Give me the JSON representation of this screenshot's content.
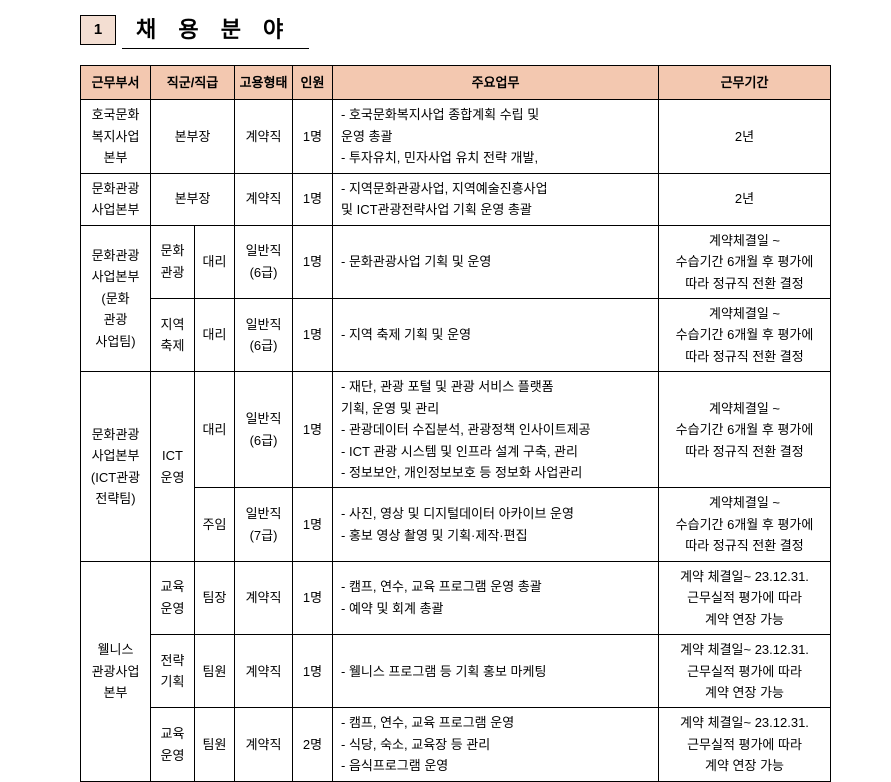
{
  "section": {
    "num": "1",
    "title": "채 용 분 야"
  },
  "headers": {
    "dept": "근무부서",
    "group": "직군/직급",
    "type": "고용형태",
    "pers": "인원",
    "duties": "주요업무",
    "period": "근무기간"
  },
  "rows": [
    {
      "dept": "호국문화\n복지사업\n본부",
      "group_span2": "본부장",
      "type": "계약직",
      "pers": "1명",
      "duties": "- 호국문화복지사업 종합계획 수립 및\n  운영 총괄\n- 투자유치, 민자사업 유치 전략 개발,",
      "period": "2년"
    },
    {
      "dept": "문화관광\n사업본부",
      "group_span2": "본부장",
      "type": "계약직",
      "pers": "1명",
      "duties": "- 지역문화관광사업, 지역예술진흥사업\n  및 ICT관광전략사업 기획 운영 총괄",
      "period": "2년"
    },
    {
      "dept": "문화관광\n사업본부\n(문화\n관광\n사업팀)",
      "sub": [
        {
          "g1": "문화\n관광",
          "g2": "대리",
          "type": "일반직\n(6급)",
          "pers": "1명",
          "duties": "- 문화관광사업 기획 및 운영",
          "period": "계약체결일 ~\n수습기간 6개월 후 평가에\n따라 정규직 전환 결정"
        },
        {
          "g1": "지역\n축제",
          "g2": "대리",
          "type": "일반직\n(6급)",
          "pers": "1명",
          "duties": "- 지역 축제 기획 및 운영",
          "period": "계약체결일 ~\n수습기간 6개월 후 평가에\n따라 정규직 전환 결정"
        }
      ]
    },
    {
      "dept": "문화관광\n사업본부\n(ICT관광\n전략팀)",
      "g1": "ICT\n운영",
      "sub": [
        {
          "g2": "대리",
          "type": "일반직\n(6급)",
          "pers": "1명",
          "duties": "- 재단, 관광 포털 및 관광 서비스 플랫폼\n  기획, 운영 및 관리\n- 관광데이터 수집분석, 관광정책 인사이트제공\n- ICT 관광 시스템 및 인프라 설계 구축, 관리\n- 정보보안, 개인정보보호 등 정보화 사업관리",
          "period": "계약체결일 ~\n수습기간 6개월 후 평가에\n따라 정규직 전환 결정"
        },
        {
          "g2": "주임",
          "type": "일반직\n(7급)",
          "pers": "1명",
          "duties": "- 사진, 영상 및 디지털데이터 아카이브 운영\n- 홍보 영상 촬영 및 기획·제작·편집",
          "period": "계약체결일 ~\n수습기간 6개월 후 평가에\n따라 정규직 전환 결정"
        }
      ]
    },
    {
      "dept": "웰니스\n관광사업\n본부",
      "sub": [
        {
          "g1": "교육\n운영",
          "g2": "팀장",
          "type": "계약직",
          "pers": "1명",
          "duties": "- 캠프, 연수, 교육 프로그램 운영 총괄\n- 예약 및 회계 총괄",
          "period": "계약 체결일~ 23.12.31.\n근무실적 평가에 따라\n계약 연장 가능"
        },
        {
          "g1": "전략\n기획",
          "g2": "팀원",
          "type": "계약직",
          "pers": "1명",
          "duties": "- 웰니스 프로그램 등 기획 홍보 마케팅",
          "period": "계약 체결일~ 23.12.31.\n근무실적 평가에 따라\n계약 연장 가능"
        },
        {
          "g1": "교육\n운영",
          "g2": "팀원",
          "type": "계약직",
          "pers": "2명",
          "duties": "- 캠프, 연수, 교육 프로그램 운영\n- 식당, 숙소, 교육장 등 관리\n- 음식프로그램 운영",
          "period": "계약 체결일~ 23.12.31.\n근무실적 평가에 따라\n계약 연장 가능"
        }
      ]
    }
  ]
}
